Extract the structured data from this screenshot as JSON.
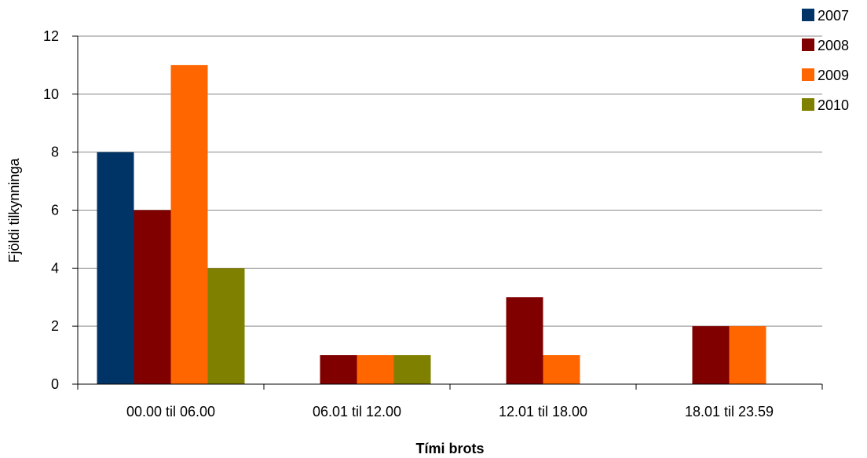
{
  "chart_data": {
    "type": "bar",
    "title": "",
    "xlabel": "Tími brots",
    "ylabel": "Fjöldi tilkynninga",
    "categories": [
      "00.00 til 06.00",
      "06.01 til 12.00",
      "12.01 til 18.00",
      "18.01 til 23.59"
    ],
    "series": [
      {
        "name": "2007",
        "color": "#003366",
        "values": [
          8,
          0,
          0,
          0
        ]
      },
      {
        "name": "2008",
        "color": "#800000",
        "values": [
          6,
          1,
          3,
          2
        ]
      },
      {
        "name": "2009",
        "color": "#FF6600",
        "values": [
          11,
          1,
          1,
          2
        ]
      },
      {
        "name": "2010",
        "color": "#808000",
        "values": [
          4,
          1,
          0,
          0
        ]
      }
    ],
    "ylim": [
      0,
      12
    ],
    "yticks": [
      0,
      2,
      4,
      6,
      8,
      10,
      12
    ],
    "grid": true,
    "legend": "top-right"
  }
}
